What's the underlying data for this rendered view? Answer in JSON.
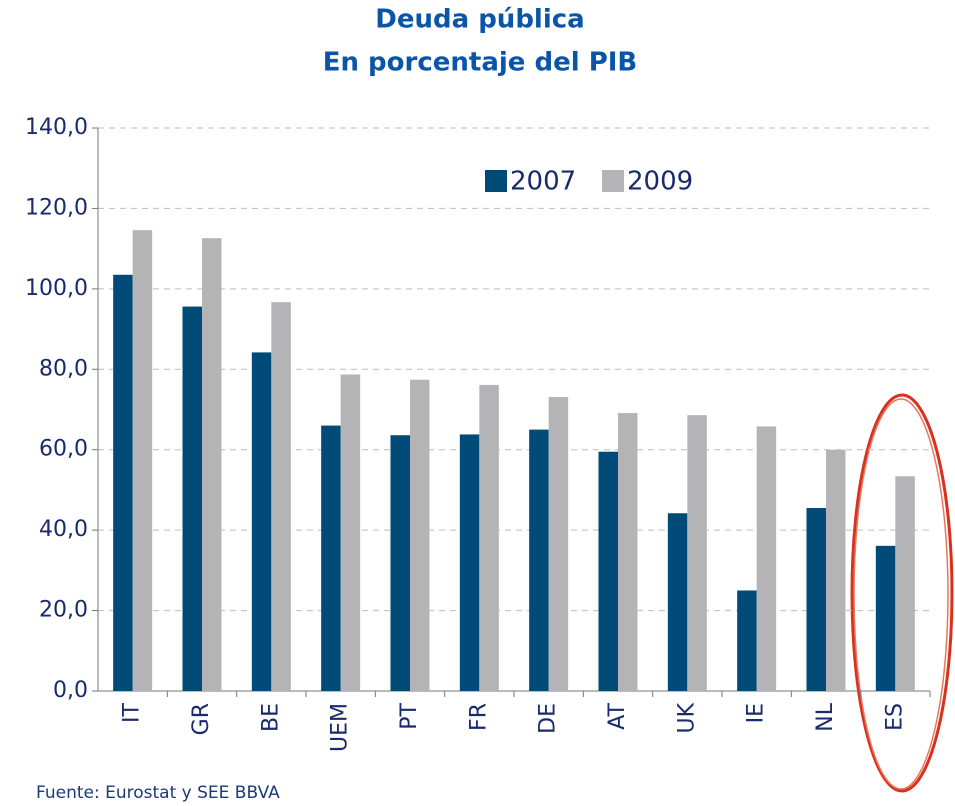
{
  "chart_data": {
    "type": "bar",
    "title": "Deuda pública",
    "subtitle": "En porcentaje del PIB",
    "categories": [
      "IT",
      "GR",
      "BE",
      "UEM",
      "PT",
      "FR",
      "DE",
      "AT",
      "UK",
      "IE",
      "NL",
      "ES"
    ],
    "series": [
      {
        "name": "2007",
        "color": "#004a78",
        "values": [
          103.5,
          95.6,
          84.2,
          66.0,
          63.6,
          63.8,
          65.0,
          59.5,
          44.2,
          25.0,
          45.5,
          36.1
        ]
      },
      {
        "name": "2009",
        "color": "#b4b4b6",
        "values": [
          114.6,
          112.6,
          96.7,
          78.7,
          77.4,
          76.1,
          73.1,
          69.1,
          68.6,
          65.8,
          60.0,
          53.4
        ]
      }
    ],
    "ylim": [
      0,
      140
    ],
    "yticks": [
      {
        "value": 0,
        "label": "0,0"
      },
      {
        "value": 20,
        "label": "20,0"
      },
      {
        "value": 40,
        "label": "40,0"
      },
      {
        "value": 60,
        "label": "60,0"
      },
      {
        "value": 80,
        "label": "80,0"
      },
      {
        "value": 100,
        "label": "100,0"
      },
      {
        "value": 120,
        "label": "120,0"
      },
      {
        "value": 140,
        "label": "140,0"
      }
    ],
    "grid": true,
    "source": "Fuente: Eurostat y SEE BBVA"
  }
}
